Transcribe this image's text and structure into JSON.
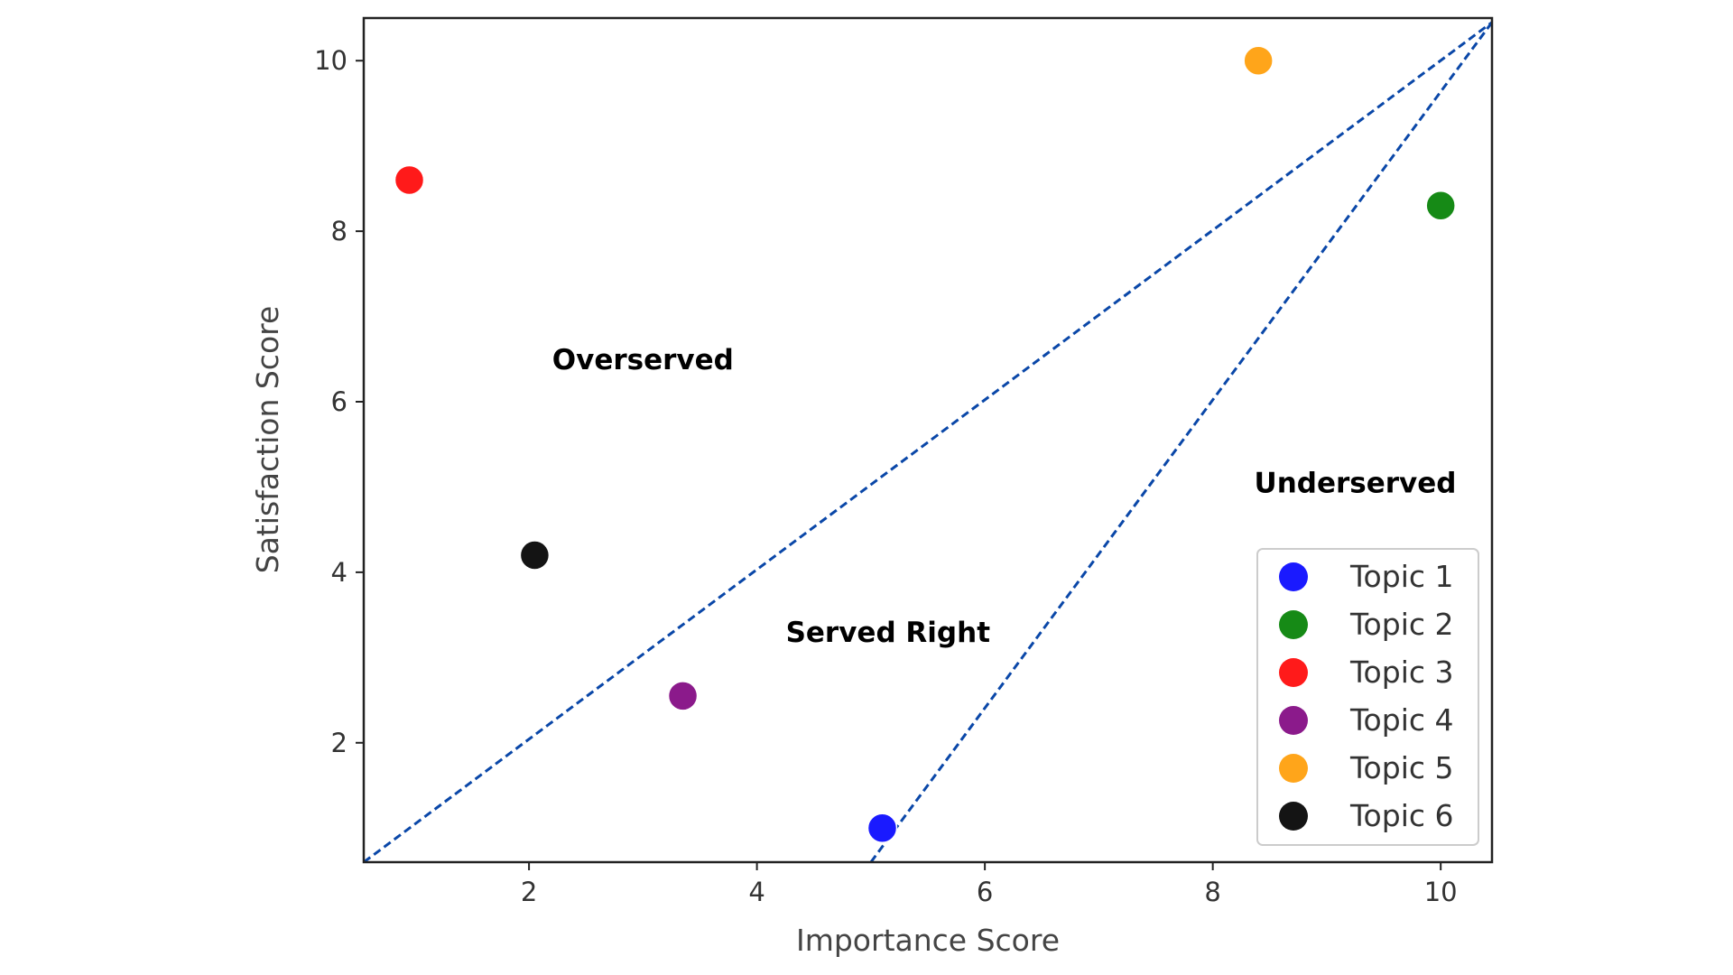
{
  "chart_data": {
    "type": "scatter",
    "title": "",
    "xlabel": "Importance Score",
    "ylabel": "Satisfaction Score",
    "xlim": [
      0.55,
      10.45
    ],
    "ylim": [
      0.6,
      10.5
    ],
    "xticks": [
      2,
      4,
      6,
      8,
      10
    ],
    "yticks": [
      2,
      4,
      6,
      8,
      10
    ],
    "grid": false,
    "legend_position": "bottom-right",
    "series": [
      {
        "name": "Topic 1",
        "color": "#1a1aff",
        "x": [
          5.1
        ],
        "y": [
          1.0
        ]
      },
      {
        "name": "Topic 2",
        "color": "#168a16",
        "x": [
          10.0
        ],
        "y": [
          8.3
        ]
      },
      {
        "name": "Topic 3",
        "color": "#ff1a1a",
        "x": [
          0.95
        ],
        "y": [
          8.6
        ]
      },
      {
        "name": "Topic 4",
        "color": "#8b1a8b",
        "x": [
          3.35
        ],
        "y": [
          2.55
        ]
      },
      {
        "name": "Topic 5",
        "color": "#ffa51a",
        "x": [
          8.4
        ],
        "y": [
          10.0
        ]
      },
      {
        "name": "Topic 6",
        "color": "#141414",
        "x": [
          2.05
        ],
        "y": [
          4.2
        ]
      }
    ],
    "reference_lines": [
      {
        "style": "dashed",
        "color": "#0a47a8",
        "points": [
          [
            0.55,
            0.6
          ],
          [
            10.45,
            10.45
          ]
        ]
      },
      {
        "style": "dashed",
        "color": "#0a47a8",
        "points": [
          [
            5.0,
            0.6
          ],
          [
            10.45,
            10.45
          ]
        ]
      }
    ],
    "annotations": [
      {
        "text": "Overserved",
        "x": 3.0,
        "y": 6.5
      },
      {
        "text": "Served Right",
        "x": 5.15,
        "y": 3.3
      },
      {
        "text": "Underserved",
        "x": 9.25,
        "y": 5.05
      }
    ]
  }
}
